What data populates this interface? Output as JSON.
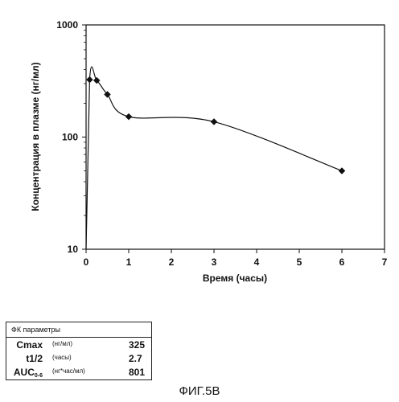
{
  "chart_data": {
    "type": "line",
    "title": "",
    "xlabel": "Время (часы)",
    "ylabel": "Концентрация в плазме (нг/мл)",
    "xlim": [
      0,
      7
    ],
    "ylim": [
      10,
      1000
    ],
    "yscale": "log",
    "xticks": [
      0,
      1,
      2,
      3,
      4,
      5,
      6,
      7
    ],
    "yticks": [
      10,
      100,
      1000
    ],
    "grid": false,
    "legend": "none",
    "marker": "diamond",
    "line_color": "#111111",
    "x": [
      0,
      0.083,
      0.25,
      0.5,
      1,
      3,
      6
    ],
    "y": [
      10,
      325,
      320,
      240,
      152,
      137,
      50
    ]
  },
  "pk_table": {
    "header": "ФК параметры",
    "rows": [
      {
        "name": "Cmax",
        "unit": "(нг/мл)",
        "value": "325"
      },
      {
        "name": "t1/2",
        "unit": "(часы)",
        "value": "2.7"
      },
      {
        "name_main": "AUC",
        "name_sub": "0-6",
        "unit": "(нг*час/мл)",
        "value": "801"
      }
    ]
  },
  "caption": "ФИГ.5В"
}
